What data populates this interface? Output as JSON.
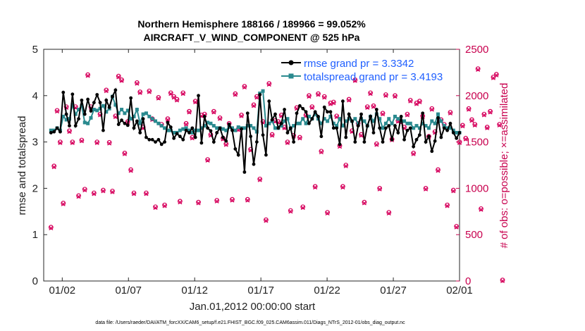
{
  "chart_data": {
    "type": "line",
    "title_line1": "Northern Hemisphere 188166 / 189966 = 99.052%",
    "title_line2": "AIRCRAFT_V_WIND_COMPONENT @ 525 hPa",
    "xlabel": "Jan.01,2012 00:00:00 start",
    "ylabel_left": "rmse and totalspread",
    "ylabel_right": "# of obs: o=possible; ×=assimilated",
    "footer": "data file: /Users/raeder/DAI/ATM_forcXX/CAM6_setup/f.e21.FHIST_BGC.f09_025.CAM6assim.011/Diags_NTrS_2012-01/obs_diag_output.nc",
    "xlim": [
      0.6,
      32.0
    ],
    "ylim_left": [
      0,
      5
    ],
    "ylim_right": [
      0,
      2500
    ],
    "x_ticks": [
      2,
      7,
      12,
      17,
      22,
      27,
      32
    ],
    "x_tick_labels": [
      "01/02",
      "01/07",
      "01/12",
      "01/17",
      "01/22",
      "01/27",
      "02/01"
    ],
    "y_left_ticks": [
      0,
      1,
      2,
      3,
      4,
      5
    ],
    "y_left_tick_labels": [
      "0",
      "1",
      "2",
      "3",
      "4",
      "5"
    ],
    "y_right_ticks": [
      0,
      500,
      1000,
      1500,
      2000,
      2500
    ],
    "y_right_tick_labels": [
      "0",
      "500",
      "1000",
      "1500",
      "2000",
      "2500"
    ],
    "legend_location": "top-right",
    "series": [
      {
        "name": "rmse grand pr = 3.3342",
        "axis": "left",
        "color": "#000000",
        "marker": "filled-circle",
        "values": [
          3.2,
          3.22,
          3.3,
          3.22,
          4.07,
          3.6,
          3.35,
          4.03,
          3.35,
          3.5,
          3.9,
          3.6,
          3.92,
          3.67,
          3.85,
          4.02,
          3.85,
          3.25,
          3.9,
          3.75,
          3.98,
          4.12,
          3.38,
          3.47,
          3.4,
          3.36,
          3.95,
          3.3,
          3.45,
          3.2,
          3.5,
          3.1,
          3.05,
          3.05,
          3.0,
          3.05,
          2.95,
          3.0,
          3.42,
          3.32,
          3.08,
          3.18,
          3.12,
          3.05,
          3.25,
          3.2,
          3.3,
          3.1,
          4.0,
          2.98,
          3.55,
          3.3,
          3.24,
          3.0,
          3.2,
          3.3,
          3.1,
          3.02,
          3.38,
          3.25,
          2.85,
          2.72,
          3.28,
          2.35,
          3.62,
          3.12,
          2.52,
          3.0,
          4.02,
          3.15,
          2.72,
          3.88,
          3.48,
          3.6,
          3.3,
          3.4,
          3.7,
          3.2,
          3.3,
          3.0,
          3.62,
          3.78,
          3.72,
          3.65,
          3.4,
          3.5,
          3.65,
          3.55,
          3.12,
          3.75,
          3.65,
          3.65,
          3.3,
          3.3,
          2.95,
          3.88,
          3.1,
          3.6,
          3.45,
          3.0,
          3.35,
          3.6,
          3.0,
          3.35,
          3.55,
          3.2,
          3.7,
          3.3,
          3.0,
          3.3,
          3.35,
          3.05,
          3.35,
          3.2,
          3.55,
          3.05,
          3.25,
          3.3,
          2.9,
          3.05,
          3.15,
          3.62,
          3.0,
          3.12,
          2.8,
          3.02,
          3.52,
          3.1,
          3.3,
          3.25,
          3.4,
          3.2,
          3.08,
          3.2
        ]
      },
      {
        "name": "totalspread grand pr = 3.4193",
        "axis": "left",
        "color": "#2a8a8f",
        "marker": "filled-square",
        "values": [
          3.25,
          3.25,
          3.3,
          3.25,
          3.55,
          3.48,
          3.5,
          3.8,
          3.6,
          3.7,
          3.78,
          3.42,
          3.4,
          3.52,
          3.7,
          3.68,
          3.72,
          3.78,
          3.65,
          3.72,
          3.98,
          3.8,
          3.62,
          3.7,
          3.62,
          3.68,
          3.5,
          3.55,
          3.7,
          3.4,
          3.6,
          3.62,
          3.55,
          3.5,
          3.45,
          3.4,
          3.35,
          3.3,
          3.25,
          3.25,
          3.2,
          3.2,
          3.25,
          3.28,
          3.3,
          3.25,
          3.2,
          3.25,
          3.25,
          3.3,
          3.35,
          3.42,
          3.4,
          3.35,
          3.3,
          3.3,
          3.28,
          3.25,
          3.32,
          3.3,
          3.25,
          3.32,
          3.3,
          3.3,
          3.35,
          3.35,
          3.3,
          3.22,
          4.05,
          4.1,
          3.35,
          3.4,
          3.45,
          3.3,
          3.3,
          3.35,
          3.45,
          3.5,
          3.3,
          3.35,
          3.4,
          3.4,
          3.5,
          3.4,
          3.55,
          3.5,
          3.6,
          3.5,
          3.4,
          3.5,
          3.45,
          3.55,
          3.4,
          3.35,
          3.5,
          3.35,
          3.45,
          3.5,
          3.45,
          3.5,
          3.4,
          3.5,
          3.45,
          3.35,
          3.55,
          3.45,
          3.6,
          3.5,
          3.3,
          3.4,
          3.5,
          3.4,
          3.55,
          3.5,
          3.45,
          3.45,
          3.4,
          3.4,
          3.3,
          3.35,
          3.3,
          3.4,
          3.35,
          3.3,
          3.45,
          3.4,
          3.6,
          3.45,
          3.35,
          3.3,
          3.3,
          3.25,
          3.2,
          3.2
        ]
      },
      {
        "name": "possible",
        "axis": "right",
        "color": "#d6005c",
        "marker": "circle",
        "values": [
          580,
          1240,
          1840,
          1500,
          840,
          1880,
          1620,
          1500,
          1880,
          920,
          1520,
          990,
          2225,
          1880,
          950,
          1500,
          1800,
          980,
          2060,
          1495,
          970,
          1780,
          2210,
          2170,
          1380,
          1720,
          1200,
          950,
          2140,
          2040,
          1660,
          950,
          2050,
          1750,
          800,
          1980,
          1690,
          820,
          1750,
          2030,
          1990,
          1960,
          860,
          2030,
          1700,
          1830,
          1550,
          1940,
          850,
          1790,
          1800,
          1310,
          1580,
          1830,
          870,
          1760,
          1540,
          1480,
          1700,
          880,
          2020,
          1640,
          1790,
          2100,
          880,
          1420,
          1900,
          1990,
          1100,
          1720,
          660,
          2130,
          1580,
          1730,
          1720,
          1790,
          1660,
          1500,
          760,
          1570,
          1870,
          1550,
          800,
          1790,
          2000,
          1880,
          1020,
          2020,
          1400,
          1990,
          740,
          1920,
          1930,
          1780,
          1460,
          1020,
          1250,
          1960,
          1620,
          2170,
          1700,
          1580,
          850,
          1880,
          2030,
          1890,
          1480,
          1000,
          1810,
          2010,
          740,
          1530,
          2000,
          1730,
          1720,
          1660,
          1800,
          1950,
          1380,
          1920,
          1940,
          1780,
          1000,
          1560,
          1860,
          1610,
          1200,
          1740,
          1690,
          820,
          1820,
          980,
          590,
          1500,
          1680,
          1540,
          1860,
          1740,
          1690,
          2290,
          780,
          1800,
          1660,
          1830,
          2200,
          2230,
          1690,
          10
        ]
      },
      {
        "name": "assimilated",
        "axis": "right",
        "color": "#d6005c",
        "marker": "x",
        "values": [
          570,
          1230,
          1830,
          1490,
          830,
          1870,
          1610,
          1490,
          1870,
          910,
          1510,
          980,
          2215,
          1870,
          940,
          1490,
          1790,
          970,
          2050,
          1485,
          960,
          1770,
          2200,
          2160,
          1370,
          1710,
          1190,
          940,
          2130,
          2030,
          1650,
          940,
          2040,
          1740,
          790,
          1970,
          1680,
          810,
          1740,
          2020,
          1980,
          1950,
          850,
          2020,
          1690,
          1820,
          1540,
          1930,
          840,
          1780,
          1790,
          1300,
          1570,
          1820,
          860,
          1750,
          1530,
          1470,
          1690,
          870,
          2010,
          1630,
          1780,
          2090,
          870,
          1410,
          1890,
          1980,
          1090,
          1710,
          650,
          2120,
          1570,
          1720,
          1710,
          1780,
          1650,
          1490,
          750,
          1560,
          1860,
          1540,
          790,
          1780,
          1990,
          1870,
          1010,
          2010,
          1390,
          1980,
          730,
          1910,
          1920,
          1770,
          1450,
          1010,
          1240,
          1950,
          1610,
          2160,
          1690,
          1570,
          840,
          1870,
          2020,
          1880,
          1470,
          990,
          1800,
          2000,
          730,
          1520,
          1990,
          1720,
          1710,
          1650,
          1790,
          1940,
          1370,
          1910,
          1930,
          1770,
          990,
          1550,
          1850,
          1600,
          1190,
          1730,
          1680,
          810,
          1810,
          970,
          580,
          1490,
          1670,
          1530,
          1850,
          1730,
          1680,
          2280,
          770,
          1790,
          1650,
          1820,
          2190,
          2220,
          1680,
          0
        ]
      }
    ]
  }
}
